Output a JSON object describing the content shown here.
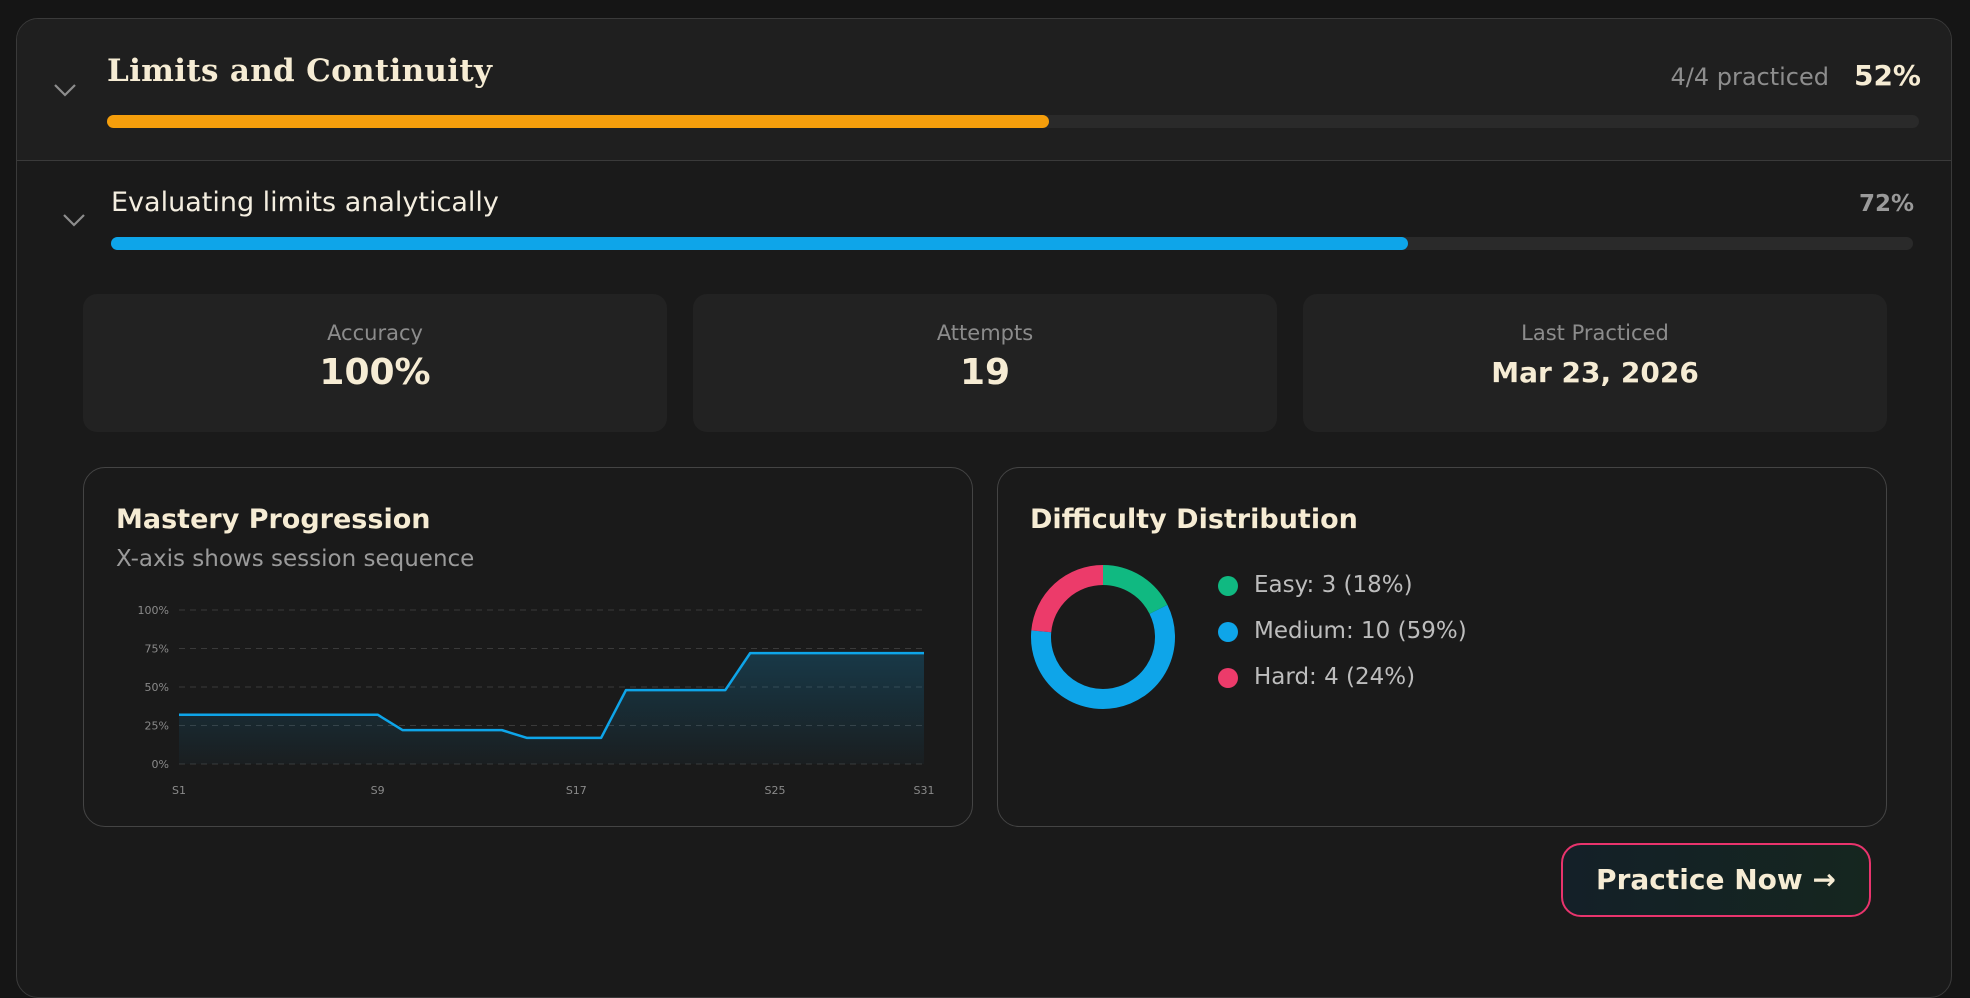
{
  "section": {
    "title": "Limits and Continuity",
    "practiced": "4/4 practiced",
    "percent_label": "52%",
    "progress": 0.52,
    "progress_color": "#f59e0b"
  },
  "topic": {
    "title": "Evaluating limits analytically",
    "percent_label": "72%",
    "progress": 0.72,
    "progress_color": "#0ea5e9"
  },
  "stats": [
    {
      "label": "Accuracy",
      "value": "100%"
    },
    {
      "label": "Attempts",
      "value": "19"
    },
    {
      "label": "Last Practiced",
      "value": "Mar 23, 2026"
    }
  ],
  "mastery": {
    "title": "Mastery Progression",
    "subtitle": "X-axis shows session sequence"
  },
  "chart_data": {
    "type": "area",
    "x": [
      "S1",
      "S2",
      "S3",
      "S4",
      "S5",
      "S6",
      "S7",
      "S8",
      "S9",
      "S10",
      "S11",
      "S12",
      "S13",
      "S14",
      "S15",
      "S16",
      "S17",
      "S18",
      "S19",
      "S20",
      "S21",
      "S22",
      "S23",
      "S24",
      "S25",
      "S26",
      "S27",
      "S28",
      "S29",
      "S30",
      "S31"
    ],
    "values": [
      32,
      32,
      32,
      32,
      32,
      32,
      32,
      32,
      32,
      22,
      22,
      22,
      22,
      22,
      17,
      17,
      17,
      17,
      48,
      48,
      48,
      48,
      48,
      72,
      72,
      72,
      72,
      72,
      72,
      72,
      72
    ],
    "x_tick_labels": [
      "S1",
      "S9",
      "S17",
      "S25",
      "S31"
    ],
    "y_tick_labels": [
      "0%",
      "25%",
      "50%",
      "75%",
      "100%"
    ],
    "ylim": [
      0,
      100
    ],
    "grid": true,
    "line_color": "#0ea5e9"
  },
  "difficulty": {
    "title": "Difficulty Distribution",
    "items": [
      {
        "label": "Easy: 3 (18%)",
        "value": 3,
        "color": "#10b981"
      },
      {
        "label": "Medium: 10 (59%)",
        "value": 10,
        "color": "#0ea5e9"
      },
      {
        "label": "Hard: 4 (24%)",
        "value": 4,
        "color": "#ec3b6a"
      }
    ]
  },
  "practice_button": {
    "label": "Practice Now →"
  },
  "icons": {
    "section_toggle": "chevron-down-icon",
    "topic_toggle": "chevron-down-icon"
  }
}
